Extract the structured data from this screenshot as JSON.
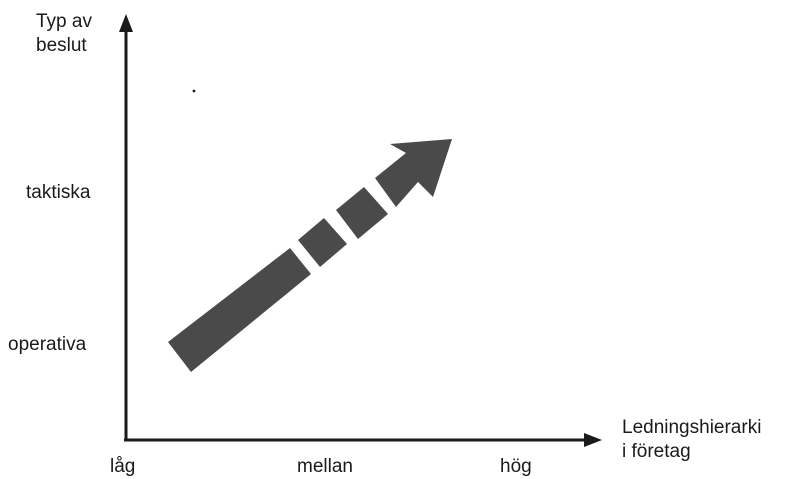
{
  "y_axis": {
    "title_lines": [
      "Typ av",
      "beslut"
    ],
    "levels": [
      "operativa",
      "taktiska"
    ]
  },
  "x_axis": {
    "title_lines": [
      "Ledningshierarki",
      "i företag"
    ],
    "levels": [
      "låg",
      "mellan",
      "hög"
    ]
  },
  "colors": {
    "ink": "#1a1a1a",
    "arrow": "#4a4a4a"
  }
}
